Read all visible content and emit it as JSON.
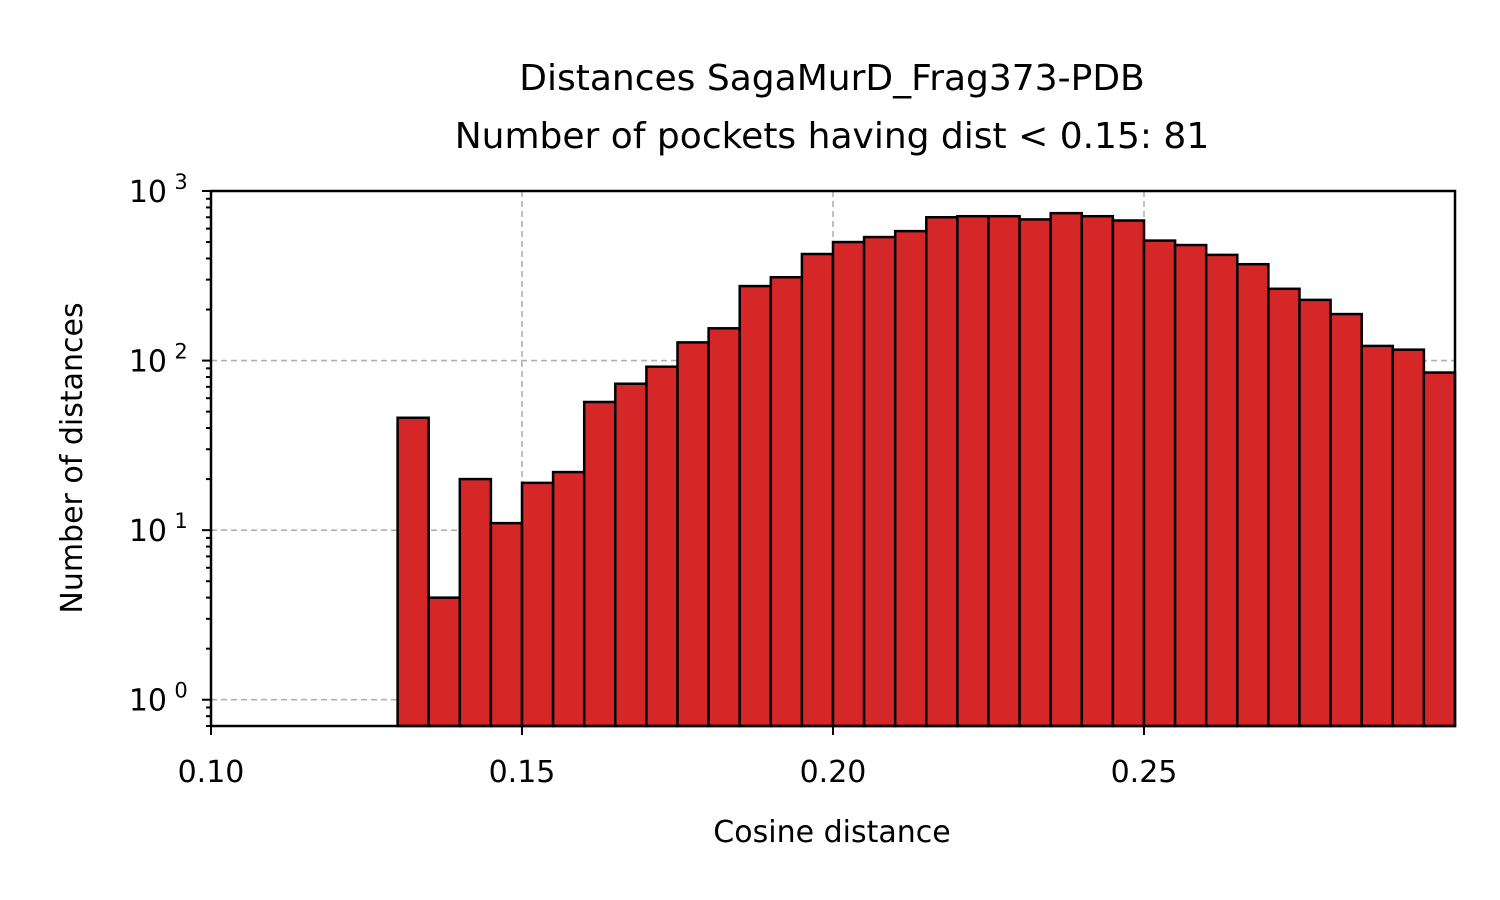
{
  "chart_data": {
    "type": "bar",
    "title_line1": "Distances SagaMurD_Frag373-PDB",
    "title_line2": "Number of pockets having dist < 0.15: 81",
    "xlabel": "Cosine distance",
    "ylabel": "Number of distances",
    "xlim": [
      0.1,
      0.3
    ],
    "ylim": [
      0.7,
      1000
    ],
    "y_scale": "log",
    "grid": true,
    "bar_color": "#d62728",
    "edge_color": "#000000",
    "xticks": [
      {
        "value": 0.1,
        "label": "0.10"
      },
      {
        "value": 0.15,
        "label": "0.15"
      },
      {
        "value": 0.2,
        "label": "0.20"
      },
      {
        "value": 0.25,
        "label": "0.25"
      }
    ],
    "yticks": [
      {
        "value": 1,
        "base": "10",
        "exp": "0"
      },
      {
        "value": 10,
        "base": "10",
        "exp": "1"
      },
      {
        "value": 100,
        "base": "10",
        "exp": "2"
      },
      {
        "value": 1000,
        "base": "10",
        "exp": "3"
      }
    ],
    "bin_width": 0.005,
    "bins": [
      {
        "x0": 0.13,
        "value": 46
      },
      {
        "x0": 0.135,
        "value": 4
      },
      {
        "x0": 0.14,
        "value": 20
      },
      {
        "x0": 0.145,
        "value": 11
      },
      {
        "x0": 0.15,
        "value": 19
      },
      {
        "x0": 0.155,
        "value": 22
      },
      {
        "x0": 0.16,
        "value": 57
      },
      {
        "x0": 0.165,
        "value": 73
      },
      {
        "x0": 0.17,
        "value": 92
      },
      {
        "x0": 0.175,
        "value": 128
      },
      {
        "x0": 0.18,
        "value": 155
      },
      {
        "x0": 0.185,
        "value": 275
      },
      {
        "x0": 0.19,
        "value": 310
      },
      {
        "x0": 0.195,
        "value": 425
      },
      {
        "x0": 0.2,
        "value": 500
      },
      {
        "x0": 0.205,
        "value": 535
      },
      {
        "x0": 0.21,
        "value": 580
      },
      {
        "x0": 0.215,
        "value": 700
      },
      {
        "x0": 0.22,
        "value": 710
      },
      {
        "x0": 0.225,
        "value": 710
      },
      {
        "x0": 0.23,
        "value": 680
      },
      {
        "x0": 0.235,
        "value": 740
      },
      {
        "x0": 0.24,
        "value": 710
      },
      {
        "x0": 0.245,
        "value": 670
      },
      {
        "x0": 0.25,
        "value": 510
      },
      {
        "x0": 0.255,
        "value": 480
      },
      {
        "x0": 0.26,
        "value": 420
      },
      {
        "x0": 0.265,
        "value": 370
      },
      {
        "x0": 0.27,
        "value": 265
      },
      {
        "x0": 0.275,
        "value": 228
      },
      {
        "x0": 0.28,
        "value": 188
      },
      {
        "x0": 0.285,
        "value": 122
      },
      {
        "x0": 0.29,
        "value": 116
      },
      {
        "x0": 0.295,
        "value": 85
      }
    ]
  }
}
